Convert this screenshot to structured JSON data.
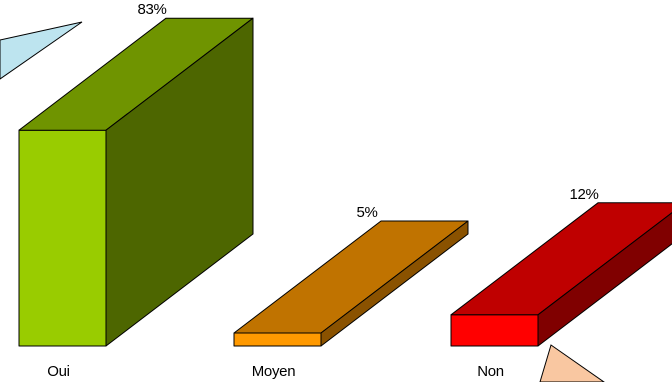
{
  "chart_data": {
    "type": "bar",
    "categories": [
      "Oui",
      "Moyen",
      "Non"
    ],
    "values": [
      83,
      5,
      12
    ],
    "value_labels": [
      "83%",
      "5%",
      "12%"
    ],
    "ylim": [
      0,
      100
    ],
    "grid": false,
    "style": "3d",
    "colors": {
      "Oui": {
        "front": "#99cc00",
        "side": "#4d6600",
        "top": "#6f9400"
      },
      "Moyen": {
        "front": "#ff9900",
        "side": "#8a5200",
        "top": "#c07300"
      },
      "Non": {
        "front": "#ff0000",
        "side": "#800000",
        "top": "#bf0000"
      }
    },
    "callout_colors": [
      "#bde4ef",
      "#f9c7a1"
    ]
  }
}
